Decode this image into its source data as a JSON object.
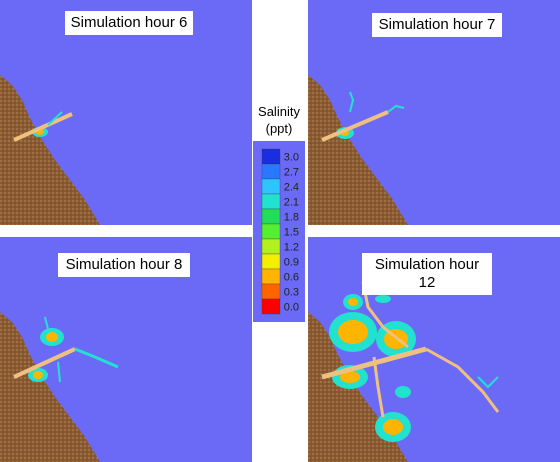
{
  "panels": [
    {
      "title": "Simulation hour 6"
    },
    {
      "title": "Simulation hour 7"
    },
    {
      "title": "Simulation hour 8"
    },
    {
      "title": "Simulation hour 12"
    }
  ],
  "legend": {
    "title": "Salinity",
    "unit": "(ppt)",
    "items": [
      {
        "label": "3.0",
        "color": "#1a2de0"
      },
      {
        "label": "2.7",
        "color": "#2a78ff"
      },
      {
        "label": "2.4",
        "color": "#2fc3ff"
      },
      {
        "label": "2.1",
        "color": "#22e2cf"
      },
      {
        "label": "1.8",
        "color": "#22dc5a"
      },
      {
        "label": "1.5",
        "color": "#55ee30"
      },
      {
        "label": "1.2",
        "color": "#b2f020"
      },
      {
        "label": "0.9",
        "color": "#f2f000"
      },
      {
        "label": "0.6",
        "color": "#ffb400"
      },
      {
        "label": "0.3",
        "color": "#ff6400"
      },
      {
        "label": "0.0",
        "color": "#ff0000"
      }
    ]
  }
}
